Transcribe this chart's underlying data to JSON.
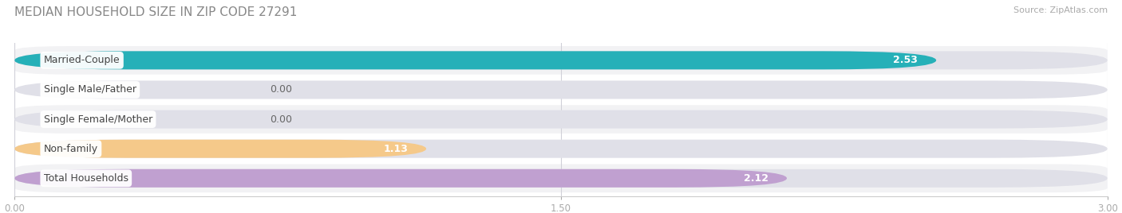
{
  "title": "MEDIAN HOUSEHOLD SIZE IN ZIP CODE 27291",
  "source": "Source: ZipAtlas.com",
  "categories": [
    "Married-Couple",
    "Single Male/Father",
    "Single Female/Mother",
    "Non-family",
    "Total Households"
  ],
  "values": [
    2.53,
    0.0,
    0.0,
    1.13,
    2.12
  ],
  "bar_colors": [
    "#26b0b8",
    "#aab8e8",
    "#f0a0b8",
    "#f5c98a",
    "#c0a0d0"
  ],
  "bg_bar_color": "#e0e0e8",
  "row_bg_even": "#f2f2f4",
  "row_bg_odd": "#ffffff",
  "xlim_max": 3.0,
  "xticks": [
    0.0,
    1.5,
    3.0
  ],
  "xtick_labels": [
    "0.00",
    "1.50",
    "3.00"
  ],
  "value_fontsize": 9,
  "label_fontsize": 9,
  "title_fontsize": 11,
  "title_color": "#888888",
  "background_color": "#ffffff",
  "grid_color": "#d0d0d8"
}
